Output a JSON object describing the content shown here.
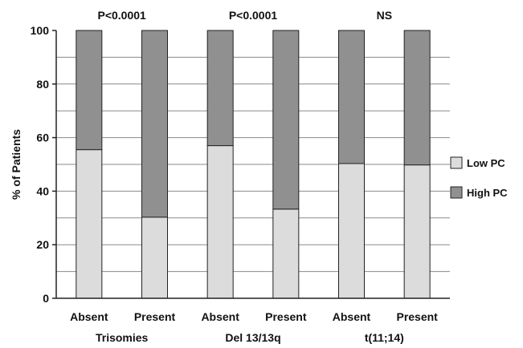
{
  "chart_data": {
    "type": "bar",
    "stacked": true,
    "ylabel": "% of Patients",
    "ylim": [
      0,
      100
    ],
    "yticks": [
      0,
      20,
      40,
      60,
      80,
      100
    ],
    "minor_grid_step": 10,
    "categories": [
      "Absent",
      "Present",
      "Absent",
      "Present",
      "Absent",
      "Present"
    ],
    "groups": [
      {
        "label": "Trisomies",
        "pvalue": "P<0.0001"
      },
      {
        "label": "Del 13/13q",
        "pvalue": "P<0.0001"
      },
      {
        "label": "t(11;14)",
        "pvalue": "NS"
      }
    ],
    "series": [
      {
        "name": "Low PC",
        "color": "#dcdcdc",
        "values": [
          55.5,
          30.3,
          57,
          33.3,
          50.3,
          49.8
        ]
      },
      {
        "name": "High PC",
        "color": "#909090",
        "values": [
          44.5,
          69.7,
          43,
          66.7,
          49.7,
          50.2
        ]
      }
    ],
    "legend_position": "right"
  }
}
